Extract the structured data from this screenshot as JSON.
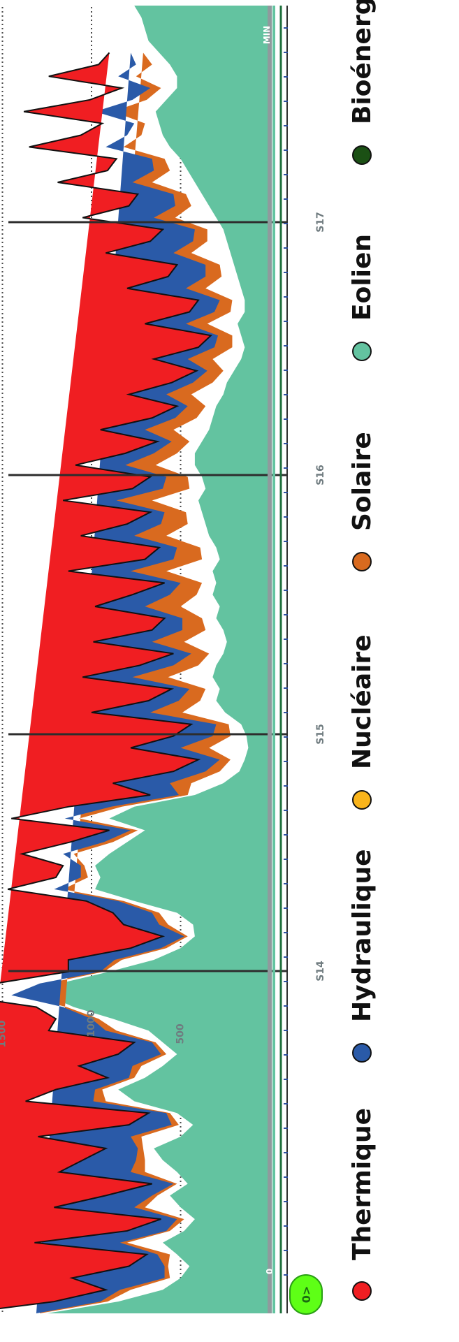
{
  "chart_data": {
    "type": "area",
    "orientation": "rotated-90",
    "y_ticks": [
      {
        "value": 0,
        "label": "0"
      },
      {
        "value": 500,
        "label": "500"
      },
      {
        "value": 1000,
        "label": "1000"
      },
      {
        "value": 1500,
        "label": "1500"
      }
    ],
    "week_labels": [
      "S14",
      "S15",
      "S16",
      "S17"
    ],
    "min_label": "MIN",
    "badge_label": "0>",
    "ylim": [
      0,
      1900
    ],
    "grid": true,
    "legend_position": "bottom",
    "series": [
      {
        "name": "Eolien",
        "color": "#63c3a0",
        "values": [
          1250,
          850,
          600,
          500,
          450,
          520,
          600,
          480,
          420,
          500,
          560,
          460,
          520,
          600,
          650,
          500,
          430,
          520,
          760,
          850,
          700,
          600,
          520,
          600,
          680,
          880,
          1100,
          1250,
          1180,
          900,
          650,
          500,
          420,
          430,
          520,
          760,
          980,
          950,
          980,
          900,
          800,
          700,
          900,
          760,
          420,
          260,
          170,
          140,
          120,
          130,
          160,
          250,
          300,
          280,
          320,
          300,
          260,
          240,
          260,
          300,
          280,
          320,
          300,
          320,
          280,
          300,
          340,
          360,
          380,
          400,
          360,
          380,
          420,
          420,
          380,
          340,
          320,
          300,
          260,
          240,
          200,
          160,
          140,
          160,
          180,
          140,
          140,
          160,
          180,
          200,
          220,
          240,
          260,
          300,
          340,
          380,
          420,
          460,
          500,
          560,
          600,
          620,
          640,
          580,
          520,
          520,
          560,
          620,
          680,
          700,
          720,
          760
        ]
      },
      {
        "name": "Solaire",
        "color": "#d96a1f",
        "values": [
          40,
          60,
          180,
          60,
          120,
          40,
          200,
          80,
          60,
          200,
          70,
          60,
          180,
          100,
          60,
          220,
          80,
          40,
          160,
          90,
          60,
          120,
          60,
          40,
          180,
          80,
          40,
          150,
          70,
          30,
          180,
          80,
          40,
          140,
          100,
          60,
          180,
          70,
          60,
          200,
          80,
          40,
          170,
          70,
          40,
          180,
          110,
          80,
          220,
          90,
          70,
          240,
          90,
          80,
          250,
          100,
          80,
          240,
          100,
          80,
          220,
          90,
          80,
          260,
          100,
          90,
          240,
          100,
          90,
          260,
          90,
          80,
          220,
          100,
          70,
          200,
          90,
          60,
          180,
          80,
          60,
          160,
          70,
          50,
          170,
          80,
          70,
          200,
          90,
          80,
          220,
          110,
          90,
          230,
          100,
          90,
          240,
          100,
          90,
          260,
          120,
          80,
          240,
          110,
          90,
          230,
          100,
          90
        ]
      },
      {
        "name": "Hydraulique",
        "color": "#2a5aa8",
        "values": [
          20,
          40,
          60,
          30,
          20,
          70,
          40,
          20,
          40,
          60,
          30,
          20,
          80,
          50,
          30,
          60,
          40,
          20,
          70,
          40,
          30,
          50,
          30,
          20,
          60,
          40,
          20,
          50,
          40,
          20,
          40,
          30,
          20,
          50,
          40,
          30,
          50,
          40,
          20,
          60,
          50,
          40,
          80,
          60,
          50,
          120,
          80,
          60,
          160,
          100,
          70,
          180,
          120,
          90,
          200,
          140,
          100,
          180,
          130,
          110,
          200,
          150,
          120,
          200,
          160,
          130,
          180,
          150,
          120,
          200,
          150,
          120,
          170,
          130,
          100,
          160,
          120,
          100,
          140,
          110,
          90,
          140,
          100,
          80,
          120,
          90,
          70,
          110,
          90,
          80,
          100,
          80,
          70,
          120,
          90,
          70,
          110,
          90,
          70,
          100,
          80,
          60,
          100,
          80,
          60,
          100,
          90,
          70
        ]
      },
      {
        "name": "Thermique",
        "color": "#f01e22",
        "values": [
          420,
          260,
          80,
          520,
          200,
          60,
          480,
          220,
          90,
          450,
          260,
          120,
          400,
          300,
          180,
          520,
          240,
          100,
          380,
          220,
          120,
          300,
          240,
          100,
          320,
          200,
          150,
          310,
          250,
          180,
          260,
          170,
          120,
          200,
          220,
          180,
          260,
          140,
          100,
          230,
          190,
          120,
          300,
          240,
          160,
          320,
          180,
          120,
          280,
          220,
          140,
          330,
          170,
          100,
          280,
          190,
          100,
          330,
          170,
          100,
          280,
          210,
          90,
          350,
          160,
          100,
          300,
          190,
          80,
          300,
          170,
          90,
          280,
          160,
          80,
          250,
          130,
          60,
          210,
          120,
          60,
          190,
          90,
          40,
          230,
          140,
          120,
          330,
          210,
          160,
          380,
          240,
          180,
          400,
          260,
          200,
          420,
          260,
          200,
          430,
          260,
          180,
          400,
          240,
          160,
          390,
          210,
          120
        ]
      },
      {
        "name": "Nucléaire",
        "color": "#f9b41b",
        "values": []
      },
      {
        "name": "Bioénergies",
        "color": "#1b5014",
        "values": []
      }
    ],
    "legend": [
      "Thermique",
      "Hydraulique",
      "Nucléaire",
      "Solaire",
      "Eolien",
      "Bioénergies"
    ]
  }
}
